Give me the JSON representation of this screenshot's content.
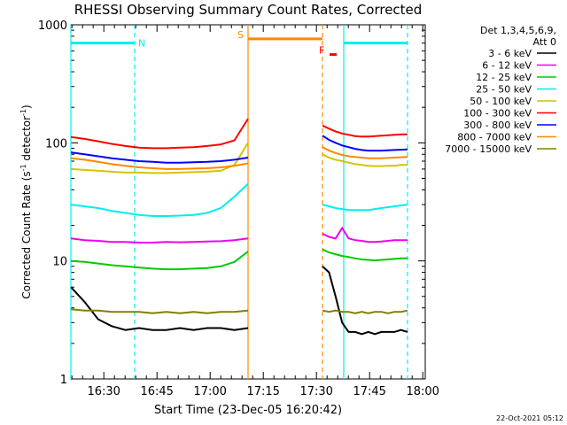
{
  "chart_data": {
    "type": "line",
    "title": "RHESSI Observing Summary Count Rates, Corrected",
    "xlabel": "Start Time (23-Dec-05 16:20:42)",
    "ylabel": "Corrected Count Rate (s",
    "ylabel_exp1": "-1",
    "ylabel_mid": " detector",
    "ylabel_exp2": "-1",
    "ylabel_end": ")",
    "y_scale": "log",
    "ylim": [
      1,
      1000
    ],
    "xlim": [
      "16:20:42",
      "18:00:42"
    ],
    "x_tick_labels": [
      "16:30",
      "16:45",
      "17:00",
      "17:15",
      "17:30",
      "17:45",
      "18:00"
    ],
    "y_tick_labels": [
      "1",
      "10",
      "100",
      "1000"
    ],
    "legend_header": [
      "Det 1,3,4,5,6,9,",
      "Att 0"
    ],
    "legend_position": "right",
    "gap": [
      "17:10:42",
      "17:31:42"
    ],
    "series": [
      {
        "name": "3 - 6 keV",
        "color": "#000000",
        "values_before": [
          6,
          4.5,
          3.2,
          2.8,
          2.6,
          2.7,
          2.6,
          2.6,
          2.7,
          2.6,
          2.7,
          2.7,
          2.6,
          2.7
        ],
        "values_after": [
          9,
          8,
          5,
          3,
          2.5,
          2.5,
          2.4,
          2.5,
          2.4,
          2.5,
          2.5,
          2.5,
          2.6,
          2.5
        ]
      },
      {
        "name": "6 - 12 keV",
        "color": "#ee00ee",
        "values_before": [
          15.5,
          15,
          14.8,
          14.5,
          14.5,
          14.3,
          14.3,
          14.5,
          14.4,
          14.5,
          14.6,
          14.7,
          15,
          15.5
        ],
        "values_after": [
          17,
          16,
          15.5,
          19,
          15.5,
          15,
          14.8,
          14.5,
          14.5,
          14.6,
          14.8,
          15,
          15,
          15
        ]
      },
      {
        "name": "12 - 25 keV",
        "color": "#00cc00",
        "values_before": [
          10,
          9.8,
          9.5,
          9.2,
          9,
          8.8,
          8.6,
          8.5,
          8.5,
          8.6,
          8.7,
          9,
          9.8,
          12
        ],
        "values_after": [
          12.5,
          11.8,
          11.4,
          11,
          10.8,
          10.5,
          10.3,
          10.2,
          10.1,
          10.2,
          10.3,
          10.4,
          10.5,
          10.5
        ]
      },
      {
        "name": "25 - 50 keV",
        "color": "#00eeee",
        "values_before": [
          30,
          29,
          28,
          26.5,
          25.5,
          24.5,
          24,
          24,
          24.2,
          24.5,
          25.5,
          28,
          35,
          45
        ],
        "values_after": [
          30,
          29,
          28,
          27.5,
          27,
          27,
          27,
          27,
          27.5,
          28,
          28.5,
          29,
          29.5,
          30
        ]
      },
      {
        "name": "50 - 100 keV",
        "color": "#d4c400",
        "values_before": [
          60,
          59,
          58,
          57,
          56,
          56,
          55.5,
          55.5,
          56,
          56.5,
          57,
          58,
          65,
          100
        ],
        "values_after": [
          80,
          75,
          72,
          70,
          68,
          66,
          65,
          64,
          63.5,
          63.5,
          64,
          64,
          65,
          65
        ]
      },
      {
        "name": "100 - 300 keV",
        "color": "#ff0000",
        "values_before": [
          112,
          108,
          103,
          98,
          94,
          91,
          90,
          90,
          91,
          92,
          94,
          97,
          105,
          160
        ],
        "values_after": [
          140,
          132,
          125,
          120,
          117,
          114,
          113,
          113,
          114,
          115,
          116,
          117,
          118,
          118
        ]
      },
      {
        "name": "300 - 800 keV",
        "color": "#0000ff",
        "values_before": [
          83,
          80,
          77,
          74,
          72,
          70,
          69,
          68,
          68,
          68.5,
          69,
          70,
          72,
          75
        ],
        "values_after": [
          115,
          106,
          100,
          95,
          92,
          89,
          87,
          86,
          86,
          86,
          86.5,
          87,
          87.5,
          88
        ]
      },
      {
        "name": "800 - 7000 keV",
        "color": "#ff8800",
        "values_before": [
          74,
          72,
          69,
          66,
          64,
          62,
          61,
          60,
          60,
          60.5,
          61,
          62,
          64,
          67
        ],
        "values_after": [
          92,
          86,
          82,
          79,
          77,
          76,
          75,
          74,
          74,
          74,
          74.5,
          75,
          75.5,
          76
        ]
      },
      {
        "name": "7000 - 15000 keV",
        "color": "#808000",
        "values_before": [
          3.9,
          3.8,
          3.8,
          3.7,
          3.7,
          3.7,
          3.6,
          3.7,
          3.6,
          3.7,
          3.6,
          3.7,
          3.7,
          3.8
        ],
        "values_after": [
          3.8,
          3.7,
          3.8,
          3.7,
          3.7,
          3.6,
          3.7,
          3.6,
          3.7,
          3.7,
          3.6,
          3.7,
          3.7,
          3.8
        ]
      }
    ],
    "vertical_markers": [
      {
        "time": "17:10:42",
        "color": "#ff8800",
        "style": "solid"
      },
      {
        "time": "17:31:42",
        "color": "#ff8800",
        "style": "dashed"
      },
      {
        "time": "16:20:42",
        "color": "#00eeee",
        "style": "solid"
      },
      {
        "time": "16:38:42",
        "color": "#00eeee",
        "style": "dashed"
      },
      {
        "time": "17:37:42",
        "color": "#00eeee",
        "style": "solid"
      },
      {
        "time": "17:55:42",
        "color": "#00eeee",
        "style": "dashed"
      }
    ],
    "flag_bars": [
      {
        "label": "N",
        "color": "#00eeee",
        "y": 700,
        "segments": [
          [
            "16:20:42",
            "16:38:42"
          ],
          [
            "17:37:42",
            "17:55:42"
          ]
        ]
      },
      {
        "label": "S",
        "color": "#ff8800",
        "y": 760,
        "segments": [
          [
            "17:10:42",
            "17:31:42"
          ]
        ]
      },
      {
        "label": "F",
        "color": "#ff0000",
        "y": 560,
        "segments": [
          [
            "17:33:42",
            "17:35:42"
          ]
        ]
      }
    ],
    "flag_labels": {
      "N": "N",
      "S": "S",
      "F": "F"
    },
    "grid": false
  },
  "timestamp": "22-Oct-2021 05:12"
}
